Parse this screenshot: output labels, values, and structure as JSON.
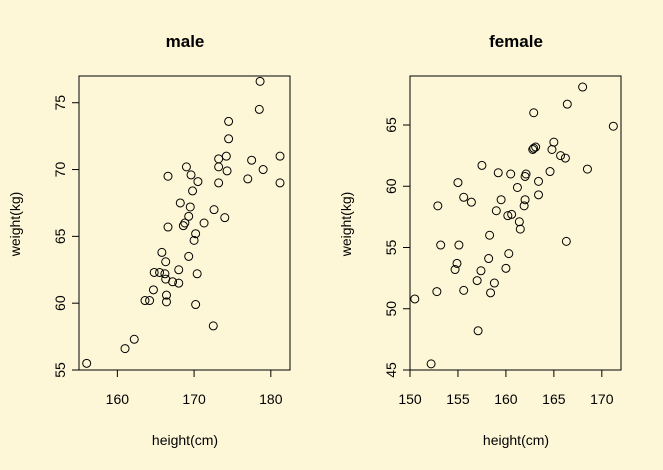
{
  "chart_data": [
    {
      "type": "scatter",
      "title": "male",
      "xlabel": "height(cm)",
      "ylabel": "weight(kg)",
      "xlim": [
        155,
        182.5
      ],
      "ylim": [
        55,
        77
      ],
      "xticks": [
        160,
        170,
        180
      ],
      "yticks": [
        55,
        60,
        65,
        70,
        75
      ],
      "grid": false,
      "points": [
        [
          156.0,
          55.5
        ],
        [
          161.0,
          56.6
        ],
        [
          162.2,
          57.3
        ],
        [
          163.6,
          60.2
        ],
        [
          164.2,
          60.2
        ],
        [
          164.7,
          61.0
        ],
        [
          164.8,
          62.3
        ],
        [
          165.5,
          62.3
        ],
        [
          165.8,
          63.8
        ],
        [
          166.2,
          62.2
        ],
        [
          166.3,
          61.8
        ],
        [
          166.3,
          63.1
        ],
        [
          166.4,
          60.1
        ],
        [
          166.4,
          60.6
        ],
        [
          166.6,
          65.7
        ],
        [
          166.6,
          69.5
        ],
        [
          167.2,
          61.6
        ],
        [
          168.0,
          61.5
        ],
        [
          168.0,
          62.5
        ],
        [
          168.2,
          67.5
        ],
        [
          168.6,
          65.8
        ],
        [
          168.8,
          66.0
        ],
        [
          169.0,
          70.2
        ],
        [
          169.3,
          63.5
        ],
        [
          169.3,
          66.5
        ],
        [
          169.5,
          67.2
        ],
        [
          169.6,
          69.6
        ],
        [
          169.8,
          68.4
        ],
        [
          170.0,
          64.7
        ],
        [
          170.2,
          65.2
        ],
        [
          170.2,
          59.9
        ],
        [
          170.4,
          62.2
        ],
        [
          170.5,
          69.1
        ],
        [
          171.3,
          66.0
        ],
        [
          172.5,
          58.3
        ],
        [
          172.6,
          67.0
        ],
        [
          173.2,
          69.0
        ],
        [
          173.2,
          70.2
        ],
        [
          173.2,
          70.8
        ],
        [
          174.0,
          66.4
        ],
        [
          174.2,
          71.0
        ],
        [
          174.3,
          69.9
        ],
        [
          174.5,
          72.3
        ],
        [
          174.5,
          73.6
        ],
        [
          177.0,
          69.3
        ],
        [
          177.5,
          70.7
        ],
        [
          178.5,
          74.5
        ],
        [
          178.6,
          76.6
        ],
        [
          179.0,
          70.0
        ],
        [
          181.2,
          69.0
        ],
        [
          181.2,
          71.0
        ]
      ]
    },
    {
      "type": "scatter",
      "title": "female",
      "xlabel": "height(cm)",
      "ylabel": "weight(kg)",
      "xlim": [
        150,
        172
      ],
      "ylim": [
        45,
        69
      ],
      "xticks": [
        150,
        155,
        160,
        165,
        170
      ],
      "yticks": [
        45,
        50,
        55,
        60,
        65
      ],
      "grid": false,
      "points": [
        [
          150.5,
          50.8
        ],
        [
          152.2,
          45.5
        ],
        [
          152.8,
          51.4
        ],
        [
          152.9,
          58.4
        ],
        [
          153.2,
          55.2
        ],
        [
          154.7,
          53.2
        ],
        [
          154.9,
          53.7
        ],
        [
          155.0,
          60.3
        ],
        [
          155.1,
          55.2
        ],
        [
          155.6,
          51.5
        ],
        [
          155.6,
          59.1
        ],
        [
          156.4,
          58.7
        ],
        [
          157.0,
          52.3
        ],
        [
          157.1,
          48.2
        ],
        [
          157.4,
          53.1
        ],
        [
          157.5,
          61.7
        ],
        [
          158.2,
          54.1
        ],
        [
          158.3,
          56.0
        ],
        [
          158.4,
          51.3
        ],
        [
          158.8,
          52.1
        ],
        [
          159.0,
          58.0
        ],
        [
          159.2,
          61.1
        ],
        [
          159.5,
          58.9
        ],
        [
          160.0,
          53.3
        ],
        [
          160.2,
          57.6
        ],
        [
          160.3,
          54.5
        ],
        [
          160.5,
          61.0
        ],
        [
          160.6,
          57.7
        ],
        [
          161.2,
          59.9
        ],
        [
          161.4,
          57.1
        ],
        [
          161.5,
          56.5
        ],
        [
          161.9,
          58.4
        ],
        [
          162.0,
          58.9
        ],
        [
          162.0,
          60.8
        ],
        [
          162.1,
          61.0
        ],
        [
          162.8,
          63.0
        ],
        [
          162.9,
          63.1
        ],
        [
          162.9,
          66.0
        ],
        [
          163.1,
          63.2
        ],
        [
          163.4,
          60.4
        ],
        [
          163.4,
          59.3
        ],
        [
          164.6,
          61.2
        ],
        [
          164.8,
          63.0
        ],
        [
          165.0,
          63.6
        ],
        [
          165.7,
          62.5
        ],
        [
          166.2,
          62.3
        ],
        [
          166.3,
          55.5
        ],
        [
          166.4,
          66.7
        ],
        [
          168.0,
          68.1
        ],
        [
          168.5,
          61.4
        ],
        [
          171.2,
          64.9
        ]
      ]
    }
  ]
}
